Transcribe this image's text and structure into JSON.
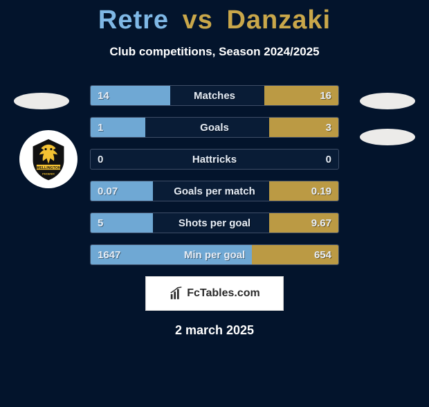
{
  "title": {
    "player1": "Retre",
    "vs": "vs",
    "player2": "Danzaki"
  },
  "subtitle": "Club competitions, Season 2024/2025",
  "colors": {
    "left_fill": "#6fa8d4",
    "right_fill": "#bb9a44",
    "bg": "#03142c",
    "title_p1": "#7fb8e6",
    "title_p2": "#c9a74a"
  },
  "rows": [
    {
      "label": "Matches",
      "left": "14",
      "right": "16",
      "pctLeft": 32,
      "pctRight": 30
    },
    {
      "label": "Goals",
      "left": "1",
      "right": "3",
      "pctLeft": 22,
      "pctRight": 28
    },
    {
      "label": "Hattricks",
      "left": "0",
      "right": "0",
      "pctLeft": 0,
      "pctRight": 0
    },
    {
      "label": "Goals per match",
      "left": "0.07",
      "right": "0.19",
      "pctLeft": 25,
      "pctRight": 28
    },
    {
      "label": "Shots per goal",
      "left": "5",
      "right": "9.67",
      "pctLeft": 25,
      "pctRight": 28
    },
    {
      "label": "Min per goal",
      "left": "1647",
      "right": "654",
      "pctLeft": 65,
      "pctRight": 35
    }
  ],
  "footer_logo_text": "FcTables.com",
  "date": "2 march 2025",
  "crest_text": "WELLINGTON"
}
